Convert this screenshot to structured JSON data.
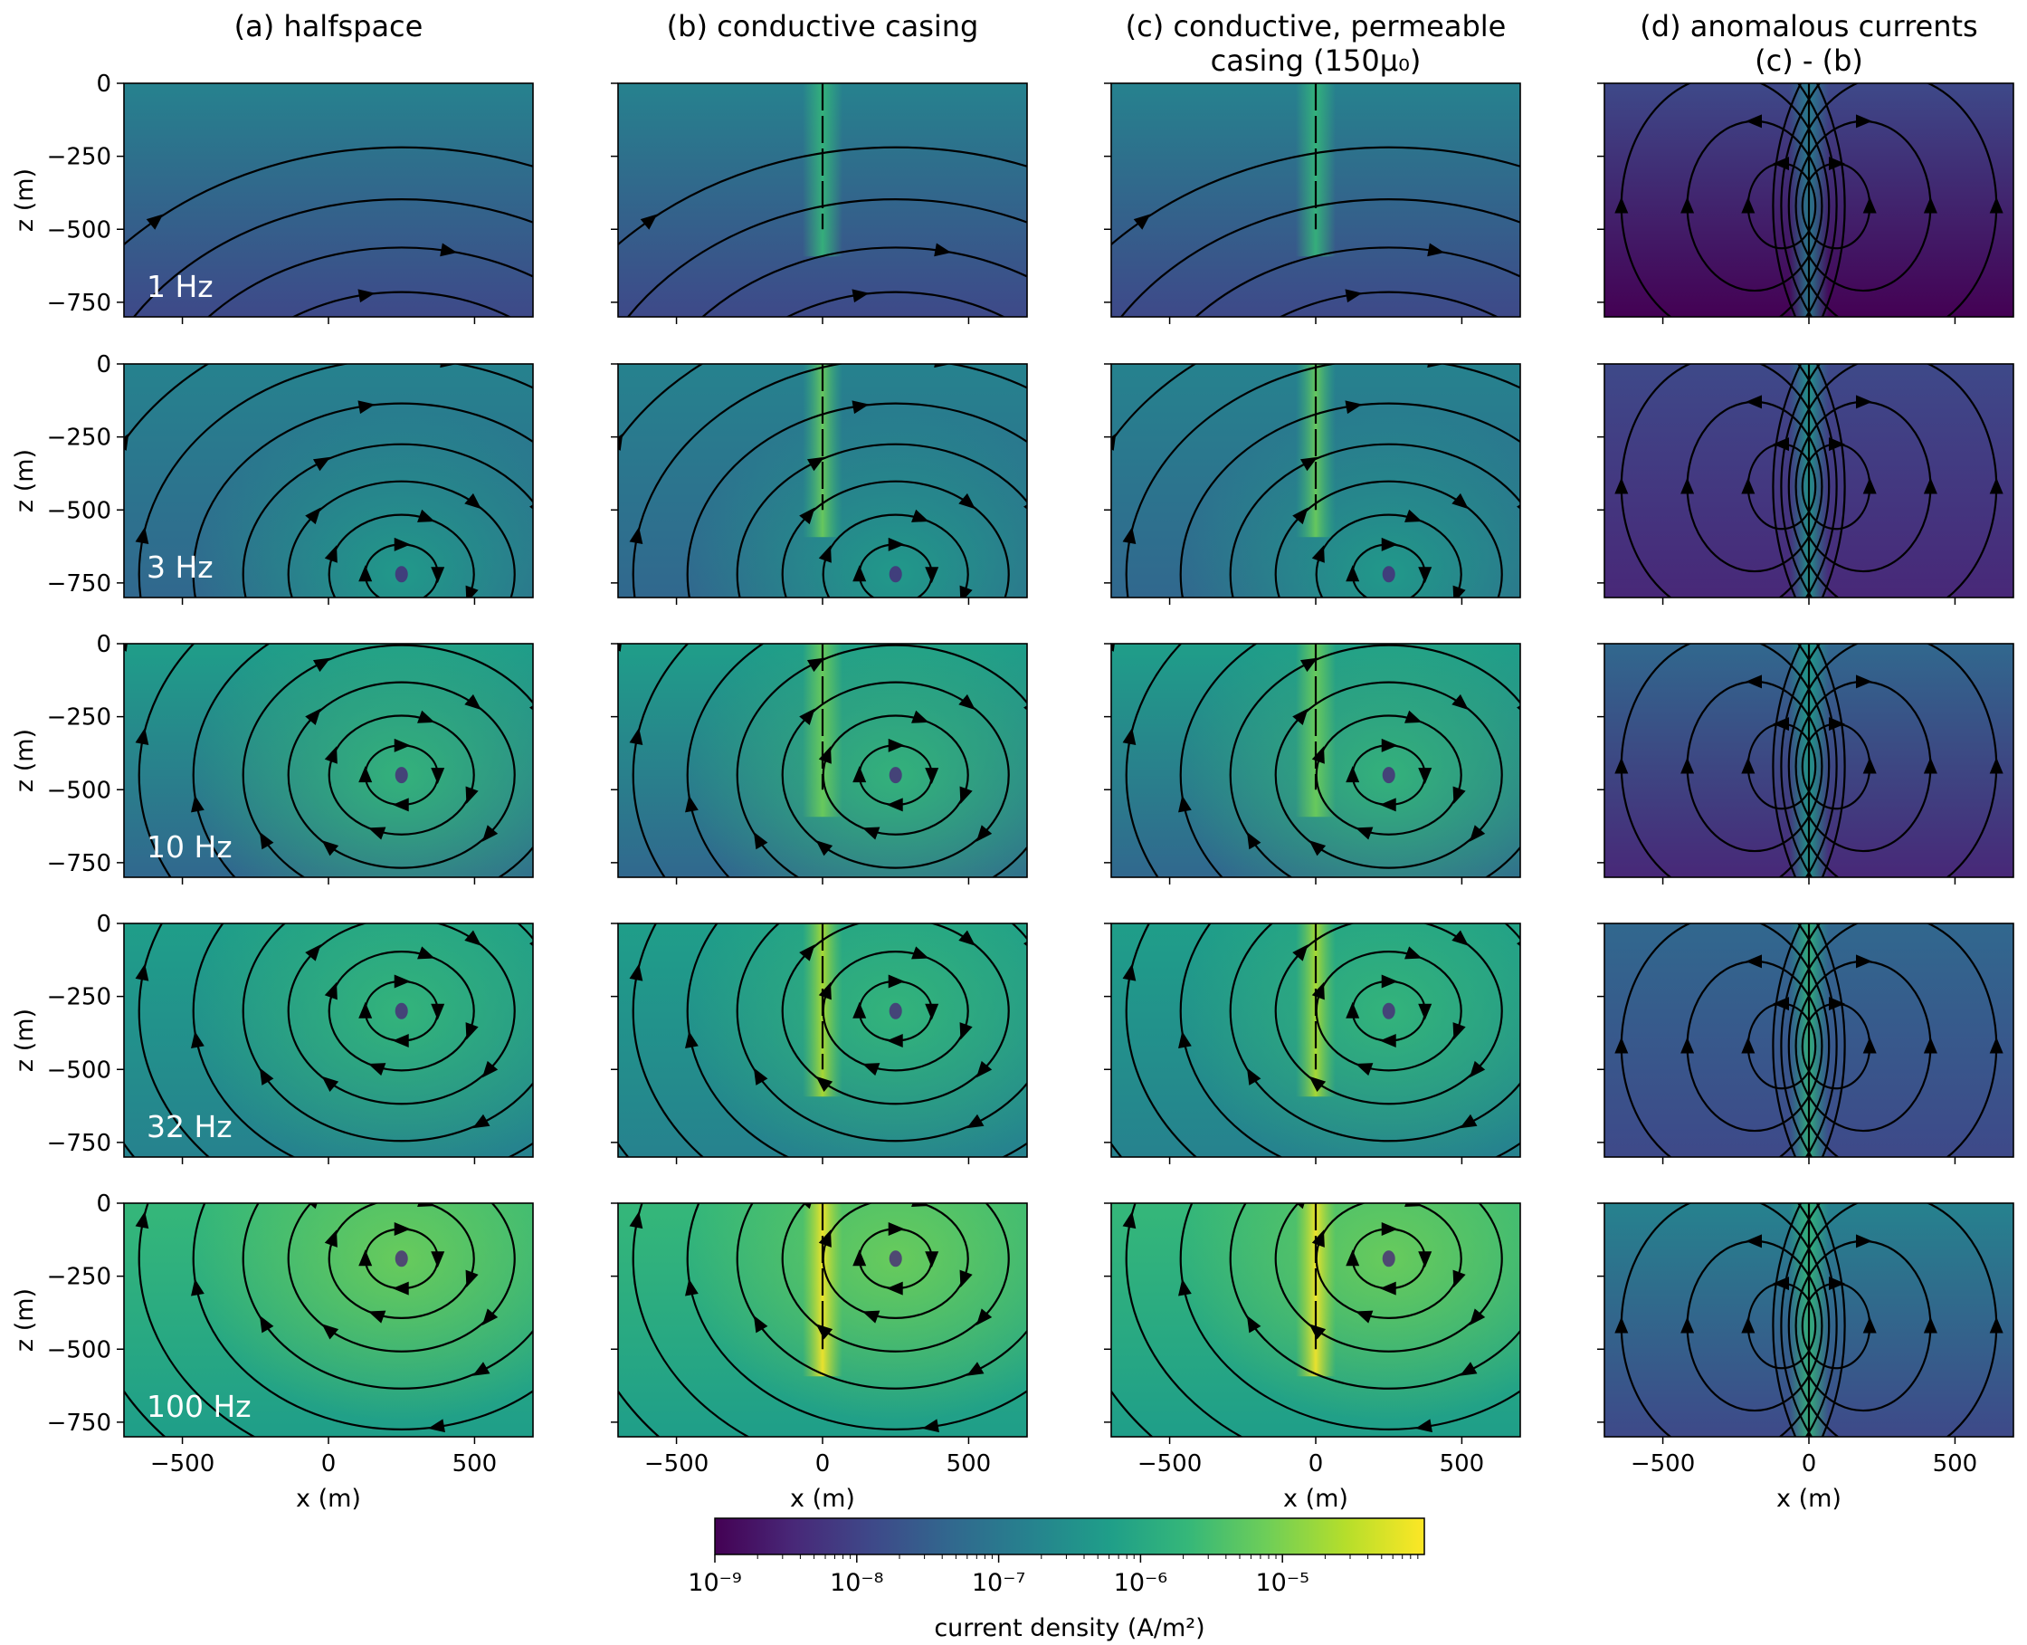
{
  "chart_data": {
    "type": "heatmap",
    "description_kind": "grid of current density maps with streamlines",
    "columns": [
      {
        "title_lines": [
          "(a) halfspace"
        ]
      },
      {
        "title_lines": [
          "(b) conductive casing"
        ]
      },
      {
        "title_lines": [
          "(c) conductive, permeable",
          "casing (150μ₀)"
        ]
      },
      {
        "title_lines": [
          "(d) anomalous currents",
          "(c) - (b)"
        ]
      }
    ],
    "rows": [
      {
        "frequency_label": "1 Hz",
        "frequency_hz": 1,
        "vortex_center": null
      },
      {
        "frequency_label": "3 Hz",
        "frequency_hz": 3,
        "vortex_center": [
          250,
          -720
        ]
      },
      {
        "frequency_label": "10 Hz",
        "frequency_hz": 10,
        "vortex_center": [
          250,
          -450
        ]
      },
      {
        "frequency_label": "32 Hz",
        "frequency_hz": 32,
        "vortex_center": [
          250,
          -300
        ]
      },
      {
        "frequency_label": "100 Hz",
        "frequency_hz": 100,
        "vortex_center": [
          250,
          -190
        ]
      }
    ],
    "casing": {
      "x": 0,
      "depth_top": 0,
      "depth_bottom": -500
    },
    "xlabel": "x (m)",
    "ylabel": "z (m)",
    "xlim": [
      -700,
      700
    ],
    "ylim": [
      -800,
      0
    ],
    "xticks": [
      -500,
      0,
      500
    ],
    "xtick_labels": [
      "−500",
      "0",
      "500"
    ],
    "yticks": [
      0,
      -250,
      -500,
      -750
    ],
    "ytick_labels": [
      "0",
      "−250",
      "−500",
      "−750"
    ],
    "colorbar": {
      "label": "current density (A/m²)",
      "scale": "log",
      "range": [
        1e-09,
        0.0001
      ],
      "ticks": [
        1e-09,
        1e-08,
        1e-07,
        1e-06,
        1e-05
      ],
      "tick_labels": [
        "10⁻⁹",
        "10⁻⁸",
        "10⁻⁷",
        "10⁻⁶",
        "10⁻⁵"
      ],
      "colormap": "viridis"
    }
  },
  "colors": {
    "viridis": [
      "#440154",
      "#482878",
      "#3e4989",
      "#31688e",
      "#26828e",
      "#1f9e89",
      "#35b779",
      "#6ece58",
      "#b5de2b",
      "#fde725"
    ],
    "streamline": "#000000",
    "frequency_text": "#ffffff"
  }
}
